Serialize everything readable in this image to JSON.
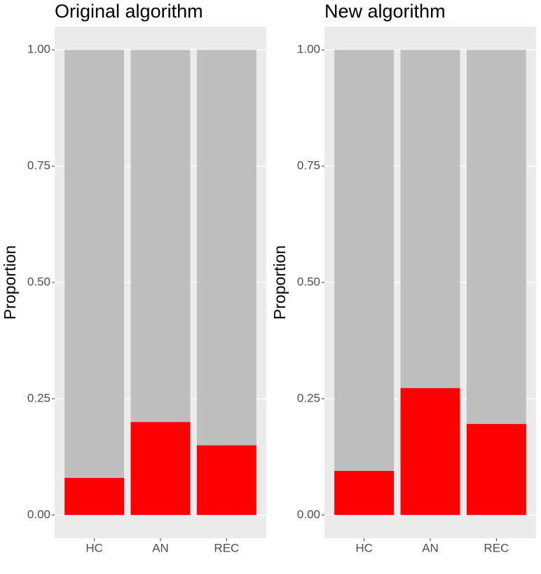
{
  "chart_data": [
    {
      "type": "stacked_bar",
      "title": "Original algorithm",
      "y_label": "Proportion",
      "categories": [
        "HC",
        "AN",
        "REC"
      ],
      "series": [
        {
          "color": "#ff0000",
          "values": [
            0.08,
            0.2,
            0.15
          ]
        },
        {
          "color": "#bebebe",
          "values": [
            0.92,
            0.8,
            0.85
          ]
        }
      ],
      "ylim": [
        -0.05,
        1.05
      ],
      "yticks": [
        {
          "value": 0,
          "label": "0.00"
        },
        {
          "value": 0.25,
          "label": "0.25"
        },
        {
          "value": 0.5,
          "label": "0.50"
        },
        {
          "value": 0.75,
          "label": "0.75"
        },
        {
          "value": 1,
          "label": "1.00"
        }
      ],
      "grid": true
    },
    {
      "type": "stacked_bar",
      "title": "New algorithm",
      "y_label": "Proportion",
      "categories": [
        "HC",
        "AN",
        "REC"
      ],
      "series": [
        {
          "color": "#ff0000",
          "values": [
            0.095,
            0.273,
            0.196
          ]
        },
        {
          "color": "#bebebe",
          "values": [
            0.905,
            0.727,
            0.804
          ]
        }
      ],
      "ylim": [
        -0.05,
        1.05
      ],
      "yticks": [
        {
          "value": 0,
          "label": "0.00"
        },
        {
          "value": 0.25,
          "label": "0.25"
        },
        {
          "value": 0.5,
          "label": "0.50"
        },
        {
          "value": 0.75,
          "label": "0.75"
        },
        {
          "value": 1,
          "label": "1.00"
        }
      ],
      "grid": true
    }
  ]
}
